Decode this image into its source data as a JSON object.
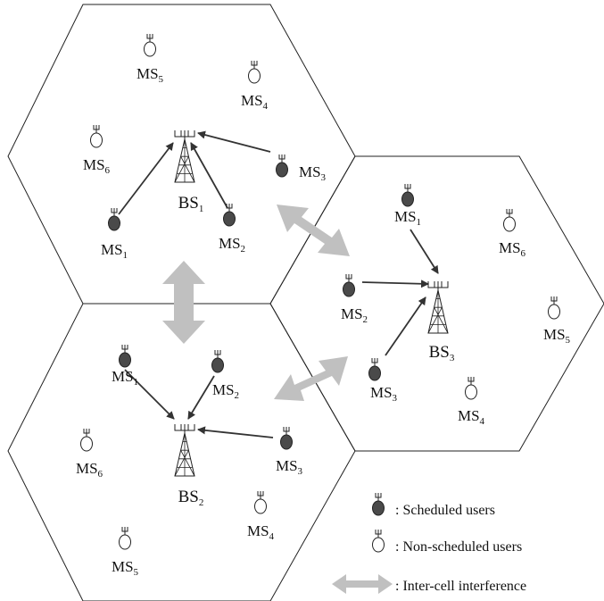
{
  "cells": [
    {
      "base_station": {
        "label": "BS",
        "index": "1"
      },
      "users": [
        {
          "label": "MS",
          "index": "1",
          "scheduled": true
        },
        {
          "label": "MS",
          "index": "2",
          "scheduled": true
        },
        {
          "label": "MS",
          "index": "3",
          "scheduled": true
        },
        {
          "label": "MS",
          "index": "4",
          "scheduled": false
        },
        {
          "label": "MS",
          "index": "5",
          "scheduled": false
        },
        {
          "label": "MS",
          "index": "6",
          "scheduled": false
        }
      ]
    },
    {
      "base_station": {
        "label": "BS",
        "index": "2"
      },
      "users": [
        {
          "label": "MS",
          "index": "1",
          "scheduled": true
        },
        {
          "label": "MS",
          "index": "2",
          "scheduled": true
        },
        {
          "label": "MS",
          "index": "3",
          "scheduled": true
        },
        {
          "label": "MS",
          "index": "4",
          "scheduled": false
        },
        {
          "label": "MS",
          "index": "5",
          "scheduled": false
        },
        {
          "label": "MS",
          "index": "6",
          "scheduled": false
        }
      ]
    },
    {
      "base_station": {
        "label": "BS",
        "index": "3"
      },
      "users": [
        {
          "label": "MS",
          "index": "1",
          "scheduled": true
        },
        {
          "label": "MS",
          "index": "2",
          "scheduled": true
        },
        {
          "label": "MS",
          "index": "3",
          "scheduled": true
        },
        {
          "label": "MS",
          "index": "4",
          "scheduled": false
        },
        {
          "label": "MS",
          "index": "5",
          "scheduled": false
        },
        {
          "label": "MS",
          "index": "6",
          "scheduled": false
        }
      ]
    }
  ],
  "legend": {
    "scheduled": ": Scheduled users",
    "non_scheduled": ": Non-scheduled users",
    "interference": ": Inter-cell interference"
  },
  "colors": {
    "scheduled_fill": "#4a4a4a",
    "non_scheduled_fill": "#ffffff",
    "link_arrow": "#333333",
    "interference_arrow": "#c0c0c0",
    "cell_border": "#222222"
  }
}
